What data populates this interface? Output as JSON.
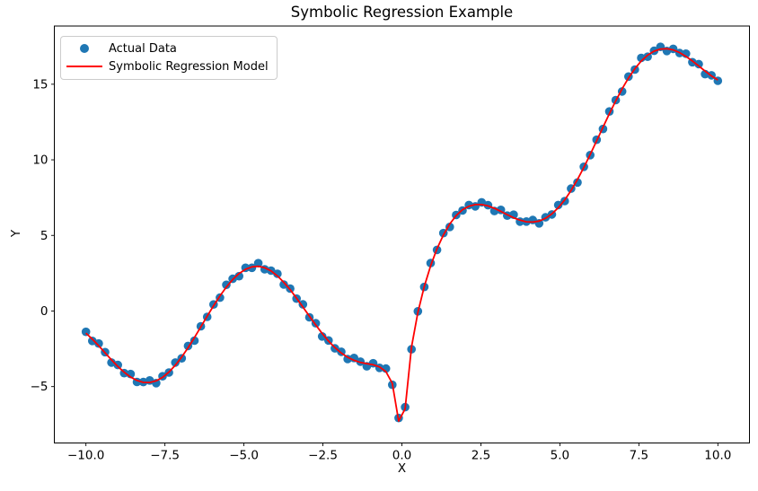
{
  "chart_data": {
    "type": "scatter+line",
    "title": "Symbolic Regression Example",
    "xlabel": "X",
    "ylabel": "Y",
    "xlim": [
      -11,
      11
    ],
    "ylim": [
      -8.73,
      18.85
    ],
    "grid": false,
    "background": "#ffffff",
    "legend_position": "upper left",
    "legend": [
      {
        "label": "Actual Data",
        "type": "marker",
        "color": "#1f77b4"
      },
      {
        "label": "Symbolic Regression Model",
        "type": "line",
        "color": "#ff0000"
      }
    ],
    "x_ticks": [
      -10.0,
      -7.5,
      -5.0,
      -2.5,
      0.0,
      2.5,
      5.0,
      7.5,
      10.0
    ],
    "x_tick_labels": [
      "−10.0",
      "−7.5",
      "−5.0",
      "−2.5",
      "0.0",
      "2.5",
      "5.0",
      "7.5",
      "10.0"
    ],
    "y_ticks": [
      -5,
      0,
      5,
      10,
      15
    ],
    "y_tick_labels": [
      "−5",
      "0",
      "5",
      "10",
      "15"
    ],
    "x": [
      -10.0,
      -9.798,
      -9.596,
      -9.394,
      -9.192,
      -8.99,
      -8.788,
      -8.586,
      -8.384,
      -8.182,
      -7.98,
      -7.778,
      -7.576,
      -7.374,
      -7.172,
      -6.97,
      -6.768,
      -6.566,
      -6.364,
      -6.162,
      -5.96,
      -5.758,
      -5.556,
      -5.354,
      -5.152,
      -4.949,
      -4.747,
      -4.545,
      -4.343,
      -4.141,
      -3.939,
      -3.737,
      -3.535,
      -3.333,
      -3.131,
      -2.929,
      -2.727,
      -2.525,
      -2.323,
      -2.121,
      -1.919,
      -1.717,
      -1.515,
      -1.313,
      -1.111,
      -0.909,
      -0.707,
      -0.505,
      -0.303,
      -0.101,
      0.101,
      0.303,
      0.505,
      0.707,
      0.909,
      1.111,
      1.313,
      1.515,
      1.717,
      1.919,
      2.121,
      2.323,
      2.525,
      2.727,
      2.929,
      3.131,
      3.333,
      3.535,
      3.737,
      3.939,
      4.141,
      4.343,
      4.545,
      4.747,
      4.949,
      5.152,
      5.354,
      5.556,
      5.758,
      5.96,
      6.162,
      6.364,
      6.566,
      6.768,
      6.97,
      7.172,
      7.374,
      7.576,
      7.778,
      7.98,
      8.182,
      8.384,
      8.586,
      8.788,
      8.99,
      9.192,
      9.394,
      9.596,
      9.798,
      10.0
    ],
    "series": [
      {
        "name": "Actual Data",
        "type": "scatter",
        "color": "#1f77b4",
        "marker_radius": 4.8,
        "values": [
          -1.38,
          -1.98,
          -2.15,
          -2.72,
          -3.41,
          -3.57,
          -4.11,
          -4.17,
          -4.69,
          -4.7,
          -4.59,
          -4.77,
          -4.32,
          -4.07,
          -3.41,
          -3.13,
          -2.31,
          -1.96,
          -1.01,
          -0.39,
          0.43,
          0.88,
          1.73,
          2.13,
          2.3,
          2.86,
          2.86,
          3.16,
          2.76,
          2.67,
          2.46,
          1.75,
          1.48,
          0.82,
          0.44,
          -0.42,
          -0.81,
          -1.68,
          -1.95,
          -2.47,
          -2.7,
          -3.18,
          -3.11,
          -3.35,
          -3.66,
          -3.46,
          -3.76,
          -3.81,
          -4.88,
          -7.08,
          -6.36,
          -2.53,
          -0.02,
          1.59,
          3.17,
          4.04,
          5.15,
          5.56,
          6.35,
          6.65,
          7.01,
          6.92,
          7.19,
          7.0,
          6.61,
          6.69,
          6.31,
          6.37,
          5.91,
          5.92,
          6.02,
          5.8,
          6.2,
          6.39,
          7.01,
          7.27,
          8.1,
          8.5,
          9.54,
          10.31,
          11.33,
          12.04,
          13.2,
          13.95,
          14.52,
          15.51,
          15.97,
          16.74,
          16.82,
          17.21,
          17.47,
          17.2,
          17.34,
          17.06,
          17.02,
          16.46,
          16.33,
          15.67,
          15.59,
          15.23
        ]
      },
      {
        "name": "Symbolic Regression Model",
        "type": "line",
        "color": "#ff0000",
        "width": 1.8,
        "values": [
          -1.46,
          -1.86,
          -2.3,
          -2.77,
          -3.23,
          -3.67,
          -4.05,
          -4.37,
          -4.59,
          -4.72,
          -4.73,
          -4.62,
          -4.39,
          -4.04,
          -3.59,
          -3.05,
          -2.43,
          -1.76,
          -1.05,
          -0.34,
          0.35,
          1.0,
          1.58,
          2.08,
          2.48,
          2.76,
          2.92,
          2.96,
          2.86,
          2.65,
          2.32,
          1.9,
          1.41,
          0.85,
          0.26,
          -0.34,
          -0.93,
          -1.48,
          -1.99,
          -2.42,
          -2.78,
          -3.06,
          -3.26,
          -3.4,
          -3.48,
          -3.56,
          -3.7,
          -4.01,
          -4.78,
          -7.28,
          -6.47,
          -2.38,
          -0.09,
          1.62,
          2.99,
          4.12,
          5.03,
          5.76,
          6.31,
          6.7,
          6.93,
          7.04,
          7.04,
          6.95,
          6.79,
          6.59,
          6.37,
          6.17,
          6.01,
          5.9,
          5.88,
          5.95,
          6.13,
          6.42,
          6.83,
          7.35,
          7.98,
          8.7,
          9.5,
          10.36,
          11.25,
          12.16,
          13.05,
          13.9,
          14.7,
          15.41,
          16.03,
          16.54,
          16.92,
          17.19,
          17.33,
          17.35,
          17.27,
          17.09,
          16.84,
          16.54,
          16.21,
          15.87,
          15.55,
          15.28
        ]
      }
    ]
  }
}
